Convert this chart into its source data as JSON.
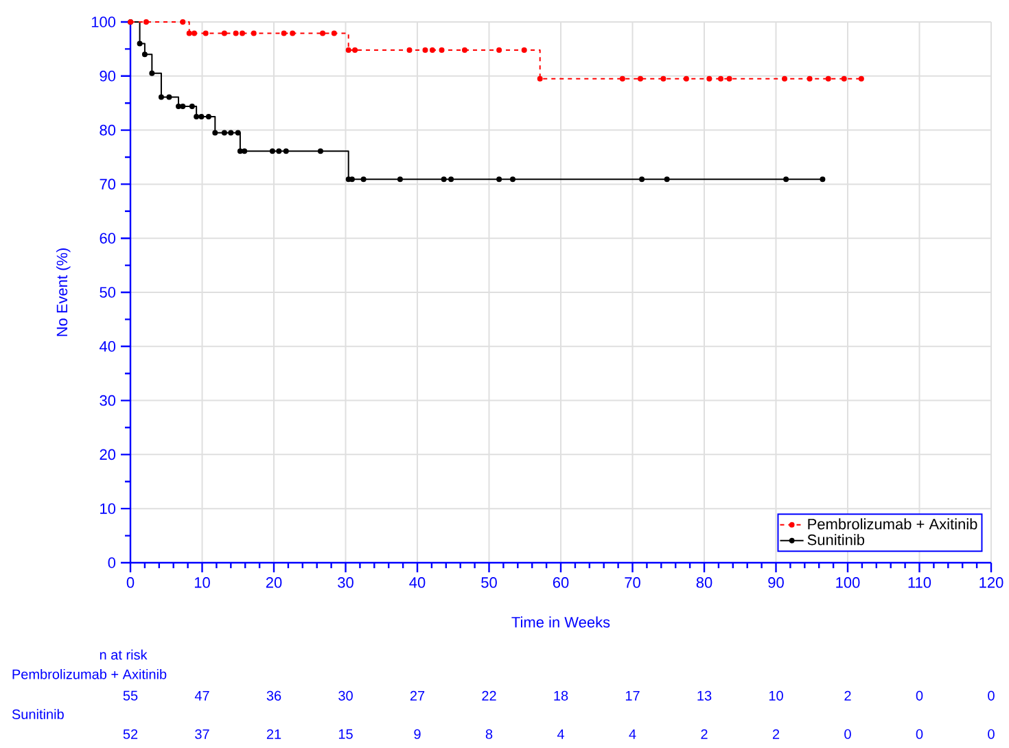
{
  "chart_data": {
    "type": "step",
    "xlabel": "Time in Weeks",
    "ylabel": "No Event (%)",
    "xlim": [
      0,
      120
    ],
    "ylim": [
      0,
      100
    ],
    "xticks": [
      0,
      {
        "value": 2,
        "label": null
      },
      {
        "value": 4,
        "label": null
      },
      {
        "value": 6,
        "label": null
      },
      {
        "value": 8,
        "label": null
      },
      10,
      {
        "value": 12,
        "label": null
      },
      {
        "value": 14,
        "label": null
      },
      {
        "value": 16,
        "label": null
      },
      {
        "value": 18,
        "label": null
      },
      20,
      {
        "value": 22,
        "label": null
      },
      {
        "value": 24,
        "label": null
      },
      {
        "value": 26,
        "label": null
      },
      {
        "value": 28,
        "label": null
      },
      30,
      {
        "value": 32,
        "label": null
      },
      {
        "value": 34,
        "label": null
      },
      {
        "value": 36,
        "label": null
      },
      {
        "value": 38,
        "label": null
      },
      40,
      {
        "value": 42,
        "label": null
      },
      {
        "value": 44,
        "label": null
      },
      {
        "value": 46,
        "label": null
      },
      {
        "value": 48,
        "label": null
      },
      50,
      {
        "value": 52,
        "label": null
      },
      {
        "value": 54,
        "label": null
      },
      {
        "value": 56,
        "label": null
      },
      {
        "value": 58,
        "label": null
      },
      60,
      {
        "value": 62,
        "label": null
      },
      {
        "value": 64,
        "label": null
      },
      {
        "value": 66,
        "label": null
      },
      {
        "value": 68,
        "label": null
      },
      70,
      {
        "value": 72,
        "label": null
      },
      {
        "value": 74,
        "label": null
      },
      {
        "value": 76,
        "label": null
      },
      {
        "value": 78,
        "label": null
      },
      80,
      {
        "value": 82,
        "label": null
      },
      {
        "value": 84,
        "label": null
      },
      {
        "value": 86,
        "label": null
      },
      {
        "value": 88,
        "label": null
      },
      90,
      {
        "value": 92,
        "label": null
      },
      {
        "value": 94,
        "label": null
      },
      {
        "value": 96,
        "label": null
      },
      {
        "value": 98,
        "label": null
      },
      100,
      {
        "value": 102,
        "label": null
      },
      {
        "value": 104,
        "label": null
      },
      {
        "value": 106,
        "label": null
      },
      {
        "value": 108,
        "label": null
      },
      110,
      {
        "value": 112,
        "label": null
      },
      {
        "value": 114,
        "label": null
      },
      {
        "value": 116,
        "label": null
      },
      {
        "value": 118,
        "label": null
      },
      120
    ],
    "yticks": [
      0,
      {
        "value": 5,
        "label": null
      },
      10,
      {
        "value": 15,
        "label": null
      },
      20,
      {
        "value": 25,
        "label": null
      },
      30,
      {
        "value": 35,
        "label": null
      },
      40,
      {
        "value": 45,
        "label": null
      },
      50,
      {
        "value": 55,
        "label": null
      },
      60,
      {
        "value": 65,
        "label": null
      },
      70,
      {
        "value": 75,
        "label": null
      },
      80,
      {
        "value": 85,
        "label": null
      },
      90,
      {
        "value": 95,
        "label": null
      },
      100
    ],
    "grid": true,
    "legend": "bottom right",
    "marker": "circle",
    "series": [
      {
        "name": "Pembrolizumab + Axitinib",
        "color": "#ff0000",
        "line_style": "dashed",
        "x": [
          0,
          2.2,
          7.3,
          8.2,
          8.9,
          10.5,
          13.1,
          14.7,
          15.6,
          17.2,
          21.4,
          22.6,
          26.8,
          28.4,
          30.4,
          31.3,
          38.9,
          41.1,
          42.1,
          43.4,
          46.6,
          51.4,
          54.9,
          57.1,
          68.6,
          71.1,
          74.3,
          77.5,
          80.7,
          82.3,
          83.5,
          91.2,
          94.7,
          97.3,
          99.5,
          101.9
        ],
        "values": [
          100,
          100,
          100,
          97.9,
          97.9,
          97.9,
          97.9,
          97.9,
          97.9,
          97.9,
          97.9,
          97.9,
          97.9,
          97.9,
          94.8,
          94.8,
          94.8,
          94.8,
          94.8,
          94.8,
          94.8,
          94.8,
          94.8,
          89.5,
          89.5,
          89.5,
          89.5,
          89.5,
          89.5,
          89.5,
          89.5,
          89.5,
          89.5,
          89.5,
          89.5,
          89.5
        ]
      },
      {
        "name": "Sunitinib",
        "color": "#000000",
        "line_style": "solid",
        "x": [
          0,
          1.3,
          2.0,
          3.0,
          4.3,
          5.4,
          6.7,
          7.3,
          8.6,
          9.2,
          9.9,
          10.9,
          11.8,
          13.1,
          14.0,
          15.0,
          15.3,
          15.9,
          19.8,
          20.7,
          21.7,
          26.5,
          30.4,
          30.9,
          32.5,
          37.6,
          43.7,
          44.7,
          51.4,
          53.3,
          71.3,
          74.8,
          91.4,
          96.5
        ],
        "values": [
          100,
          96.0,
          94.0,
          90.5,
          86.1,
          86.1,
          84.4,
          84.4,
          84.4,
          82.5,
          82.5,
          82.5,
          79.5,
          79.5,
          79.5,
          79.5,
          76.1,
          76.1,
          76.1,
          76.1,
          76.1,
          76.1,
          70.9,
          70.9,
          70.9,
          70.9,
          70.9,
          70.9,
          70.9,
          70.9,
          70.9,
          70.9,
          70.9,
          70.9
        ]
      }
    ],
    "annotations": [
      "n at risk",
      "Pembrolizumab + Axitinib",
      "55",
      "47",
      "36",
      "30",
      "27",
      "22",
      "18",
      "17",
      "13",
      "10",
      "2",
      "0",
      "0",
      "Sunitinib",
      "52",
      "37",
      "21",
      "15",
      "9",
      "8",
      "4",
      "4",
      "2",
      "2",
      "0",
      "0",
      "0"
    ]
  }
}
